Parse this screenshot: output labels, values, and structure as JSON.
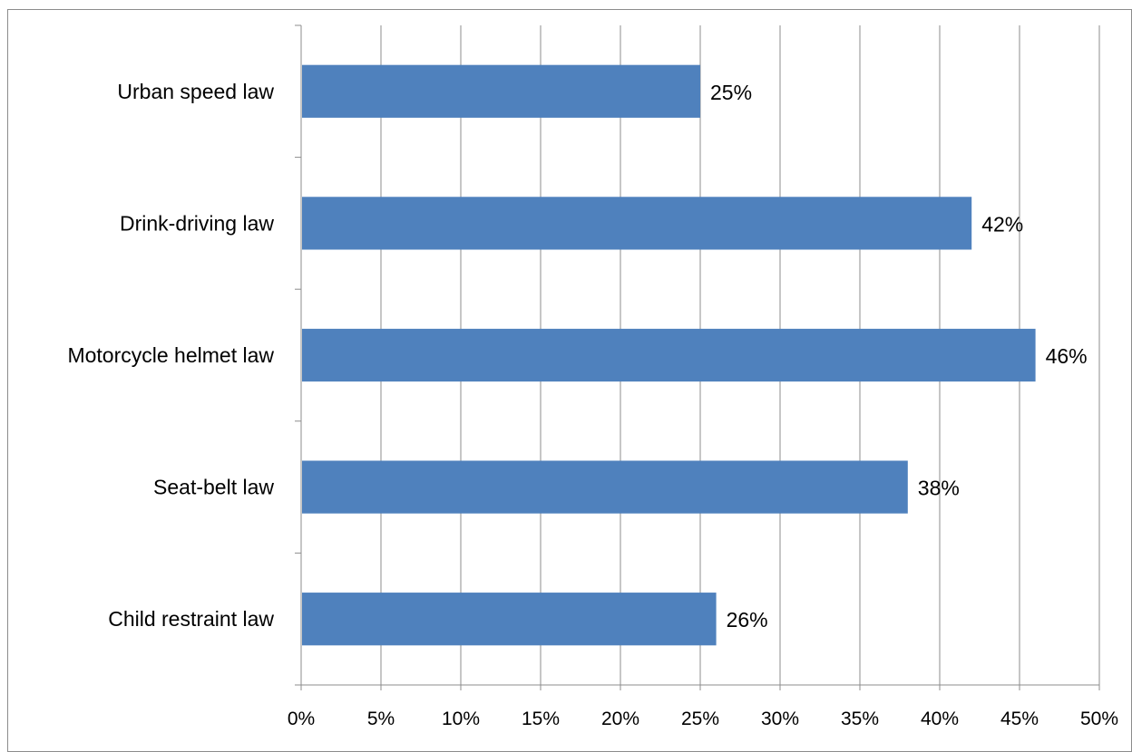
{
  "chart_data": {
    "type": "bar",
    "orientation": "horizontal",
    "categories": [
      "Urban speed law",
      "Drink-driving law",
      "Motorcycle helmet law",
      "Seat-belt law",
      "Child restraint law"
    ],
    "values": [
      25,
      42,
      46,
      38,
      26
    ],
    "data_labels": [
      "25%",
      "42%",
      "46%",
      "38%",
      "26%"
    ],
    "x_ticks": [
      0,
      5,
      10,
      15,
      20,
      25,
      30,
      35,
      40,
      45,
      50
    ],
    "x_tick_labels": [
      "0%",
      "5%",
      "10%",
      "15%",
      "20%",
      "25%",
      "30%",
      "35%",
      "40%",
      "45%",
      "50%"
    ],
    "xlim": [
      0,
      50
    ],
    "grid": "vertical",
    "legend": "none",
    "bar_color": "#4f81bd",
    "title": "",
    "xlabel": "",
    "ylabel": ""
  }
}
